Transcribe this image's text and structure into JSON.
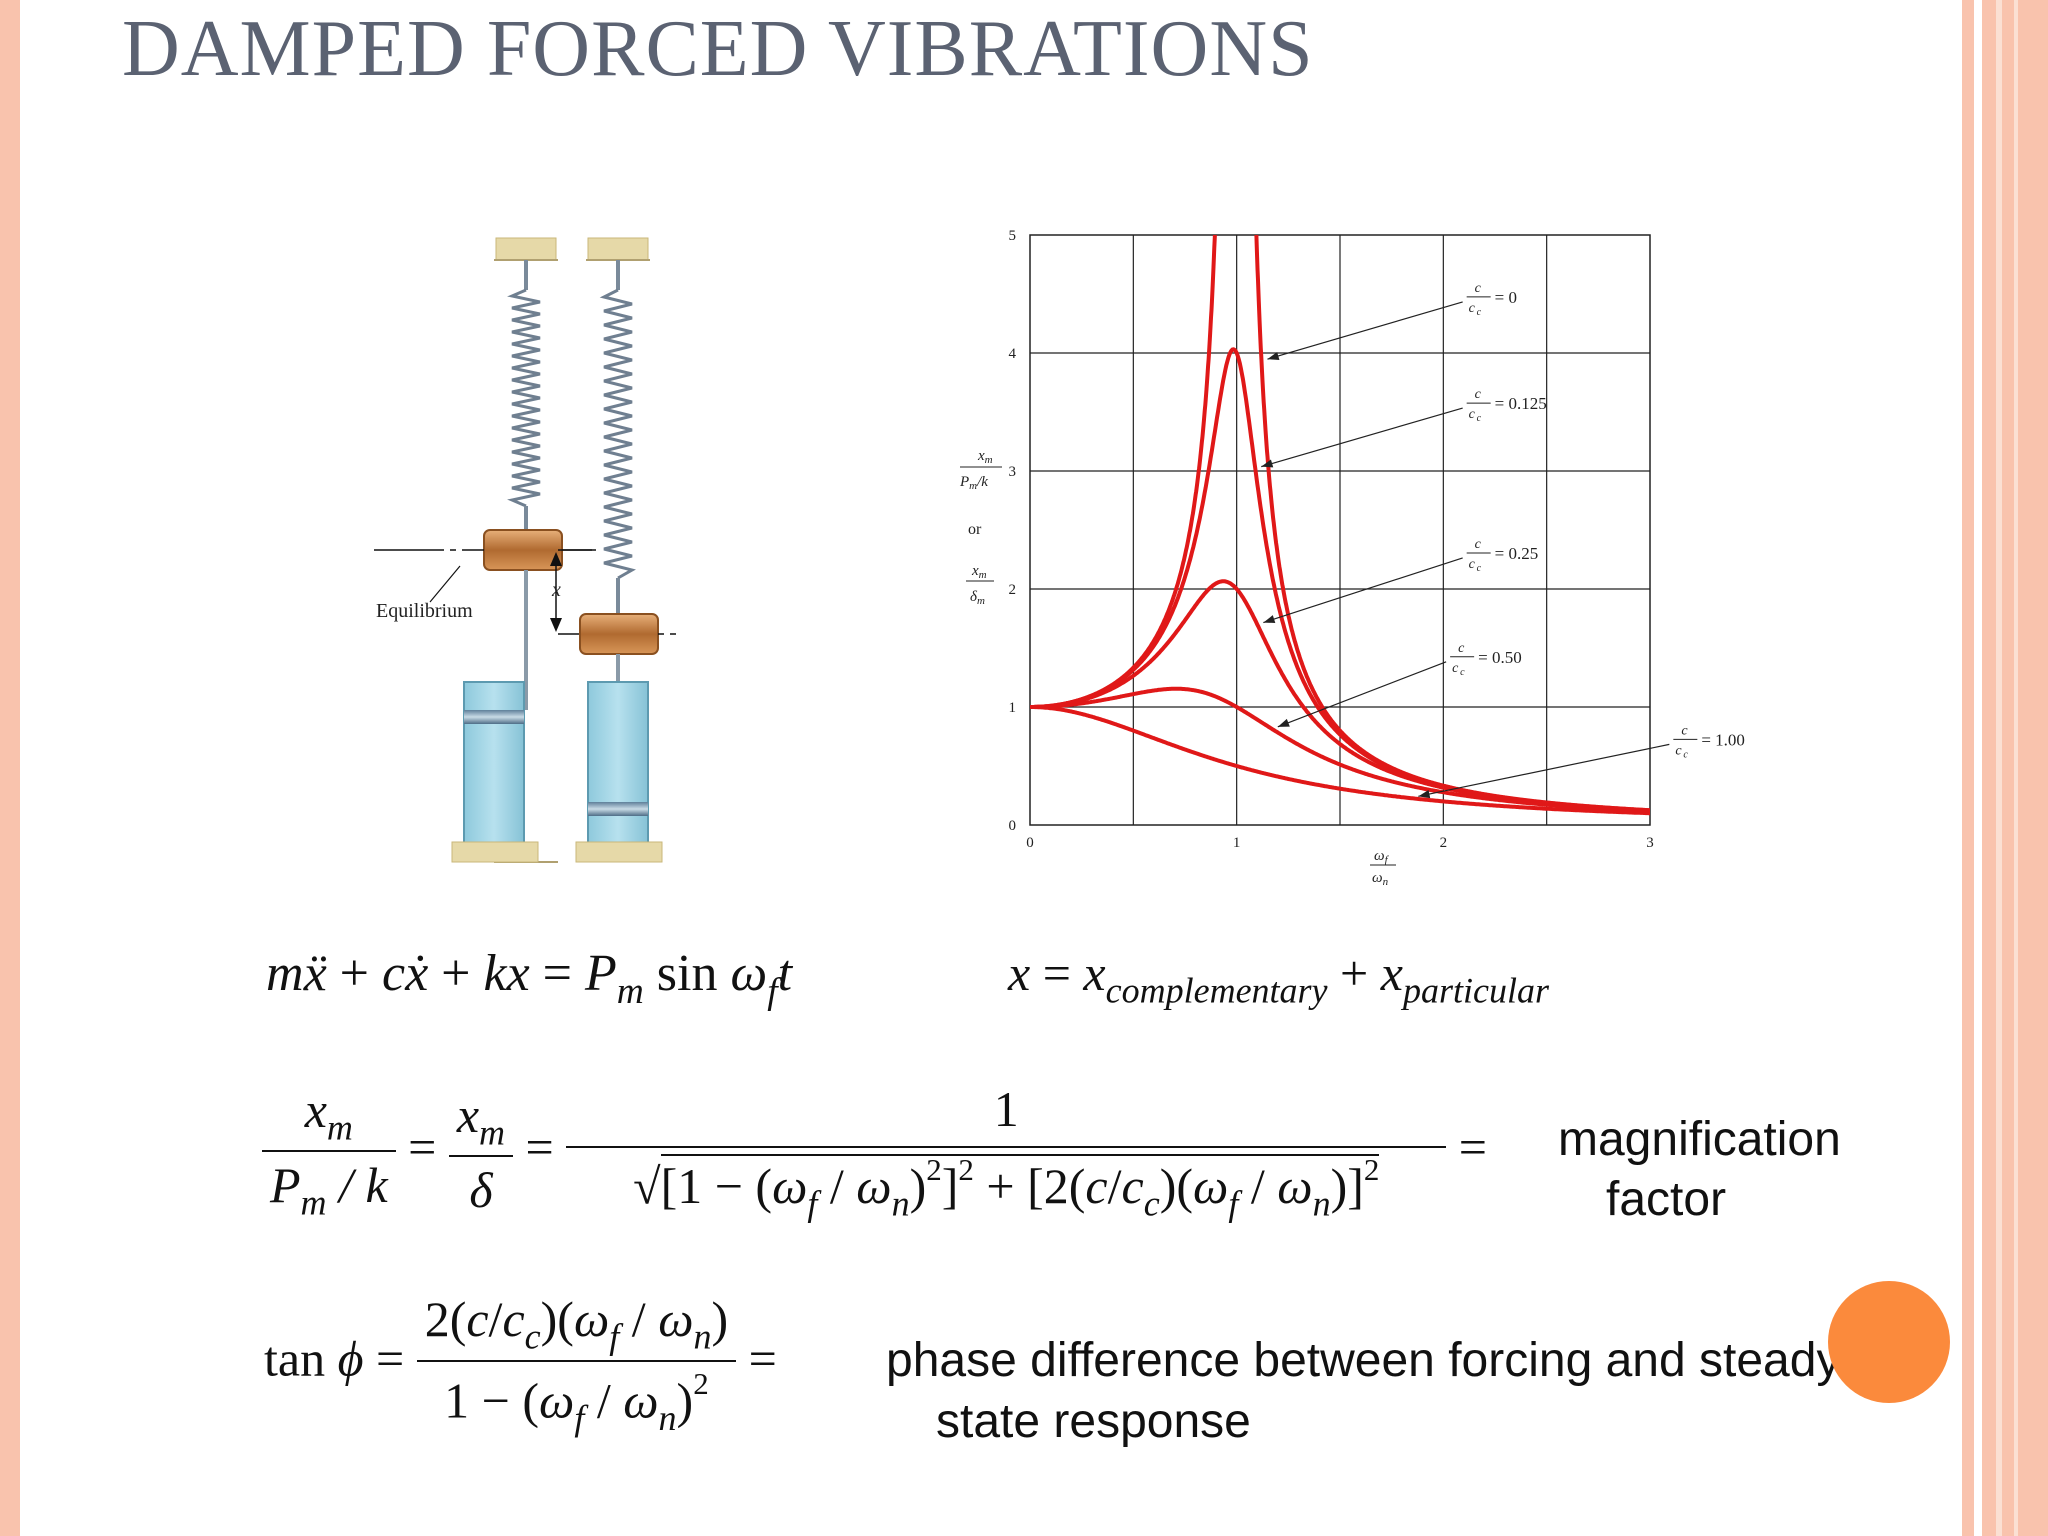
{
  "slide": {
    "title": "DAMPED FORCED VIBRATIONS"
  },
  "figure": {
    "equilibrium_label": "Equilibrium",
    "x_label": "x"
  },
  "chart_data": {
    "type": "line",
    "title": "",
    "xlabel": "ωf / ωn",
    "ylabel": "xm / (Pm/k) or xm / δm",
    "ylabel_or": "or",
    "xlim": [
      0,
      3
    ],
    "ylim": [
      0,
      5
    ],
    "x_ticks": [
      "0",
      "1",
      "2",
      "3"
    ],
    "y_ticks": [
      "0",
      "1",
      "2",
      "3",
      "4",
      "5"
    ],
    "grid": true,
    "line_color": "#e01818",
    "series": [
      {
        "name": "c/cc = 0",
        "zeta": 0
      },
      {
        "name": "c/cc = 0.125",
        "zeta": 0.125
      },
      {
        "name": "c/cc = 0.25",
        "zeta": 0.25
      },
      {
        "name": "c/cc = 0.50",
        "zeta": 0.5
      },
      {
        "name": "c/cc = 1.00",
        "zeta": 1.0
      }
    ],
    "annotation_values": [
      "= 0",
      "= 0.125",
      "= 0.25",
      "= 0.50",
      "= 1.00"
    ]
  },
  "equations": {
    "text_magnification": "magnification",
    "text_factor": "factor",
    "text_phase_1": "phase difference between forcing and steady",
    "text_phase_2": "state response"
  },
  "colors": {
    "title": "#5b6272",
    "accent_border": "#f9c3ad",
    "orange_dot": "#fb8a3c"
  }
}
